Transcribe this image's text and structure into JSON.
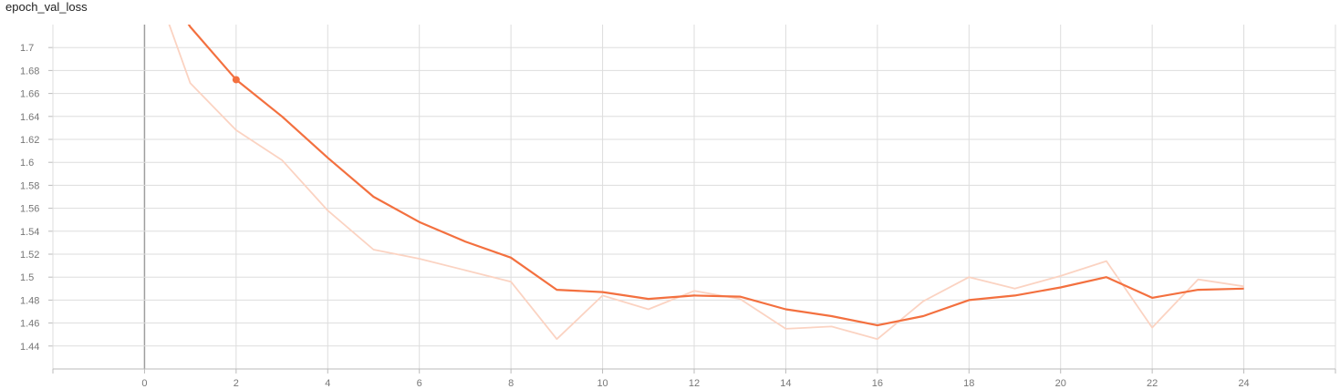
{
  "title": "epoch_val_loss",
  "colors": {
    "smoothed": "#f3703f",
    "raw": "#fbd3c2",
    "grid": "#dddddd",
    "zero_axis": "#9e9e9e",
    "axis": "#bbbbbb"
  },
  "chart_data": {
    "type": "line",
    "title": "epoch_val_loss",
    "xlabel": "",
    "ylabel": "",
    "xlim": [
      -2,
      26
    ],
    "ylim": [
      1.42,
      1.72
    ],
    "grid": true,
    "x_ticks": [
      0,
      2,
      4,
      6,
      8,
      10,
      12,
      14,
      16,
      18,
      20,
      22,
      24
    ],
    "y_ticks": [
      1.44,
      1.46,
      1.48,
      1.5,
      1.52,
      1.54,
      1.56,
      1.58,
      1.6,
      1.62,
      1.64,
      1.66,
      1.68,
      1.7
    ],
    "series": [
      {
        "role": "raw",
        "x": [
          0,
          1,
          2,
          3,
          4,
          5,
          6,
          7,
          8,
          9,
          10,
          11,
          12,
          13,
          14,
          15,
          16,
          17,
          18,
          19,
          20,
          21,
          22,
          23,
          24
        ],
        "y": [
          1.78,
          1.669,
          1.628,
          1.602,
          1.558,
          1.524,
          1.516,
          1.506,
          1.496,
          1.446,
          1.484,
          1.472,
          1.488,
          1.481,
          1.455,
          1.457,
          1.446,
          1.479,
          1.5,
          1.49,
          1.501,
          1.514,
          1.456,
          1.498,
          1.492
        ]
      },
      {
        "role": "smoothed",
        "x": [
          0,
          1,
          2,
          3,
          4,
          5,
          6,
          7,
          8,
          9,
          10,
          11,
          12,
          13,
          14,
          15,
          16,
          17,
          18,
          19,
          20,
          21,
          22,
          23,
          24
        ],
        "y": [
          1.78,
          1.718,
          1.672,
          1.64,
          1.604,
          1.57,
          1.548,
          1.531,
          1.517,
          1.489,
          1.487,
          1.481,
          1.484,
          1.483,
          1.472,
          1.466,
          1.458,
          1.466,
          1.48,
          1.484,
          1.491,
          1.5,
          1.482,
          1.489,
          1.49
        ]
      }
    ],
    "highlight_point": {
      "x": 2,
      "y": 1.672
    }
  }
}
